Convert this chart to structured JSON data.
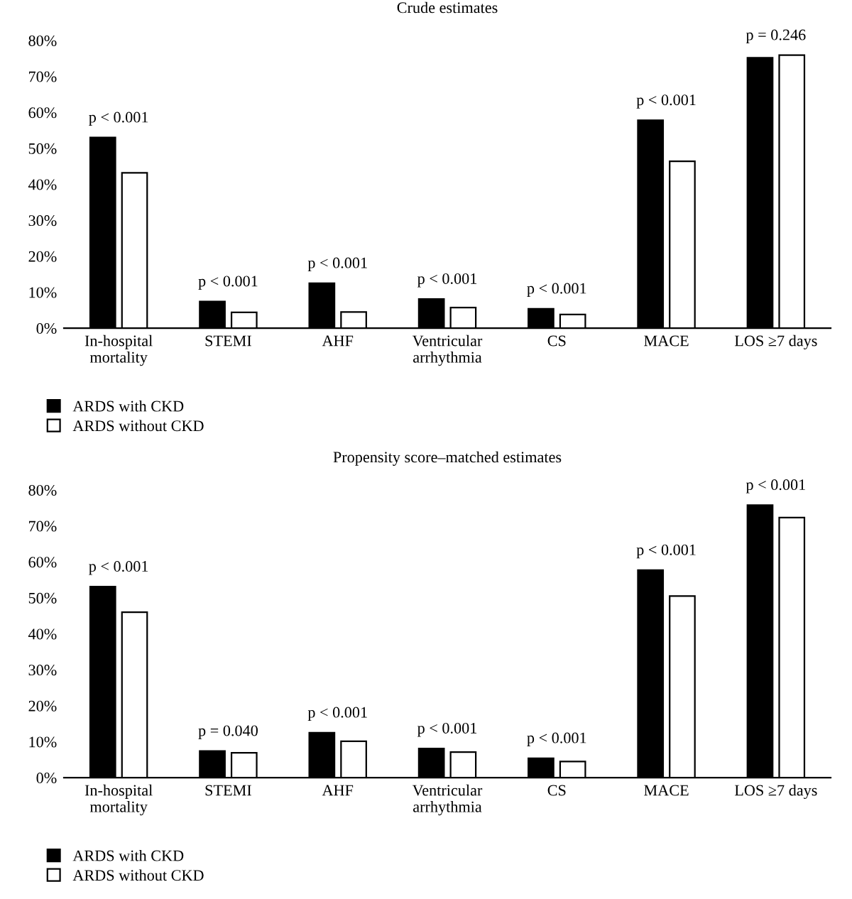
{
  "chart_data": [
    {
      "type": "bar",
      "title": "Crude estimates",
      "categories": [
        "In-hospital\nmortality",
        "STEMI",
        "AHF",
        "Ventricular\narrhythmia",
        "CS",
        "MACE",
        "LOS ≥7 days"
      ],
      "series": [
        {
          "name": "ARDS with CKD",
          "color": "#000000",
          "values": [
            53.0,
            7.4,
            12.5,
            8.1,
            5.4,
            57.8,
            75.2
          ]
        },
        {
          "name": "ARDS without CKD",
          "color": "#ffffff",
          "values": [
            43.2,
            4.4,
            4.5,
            5.7,
            3.8,
            46.4,
            75.9
          ]
        }
      ],
      "ylim": [
        0,
        80
      ],
      "yticks": [
        {
          "value": 0,
          "label": "0%"
        },
        {
          "value": 10,
          "label": "10%"
        },
        {
          "value": 20,
          "label": "20%"
        },
        {
          "value": 30,
          "label": "30%"
        },
        {
          "value": 40,
          "label": "40%"
        },
        {
          "value": 50,
          "label": "50%"
        },
        {
          "value": 60,
          "label": "60%"
        },
        {
          "value": 70,
          "label": "70%"
        },
        {
          "value": 80,
          "label": "80%"
        }
      ],
      "annotations": [
        {
          "text": "p < 0.001",
          "x": "In-hospital\nmortality",
          "y": 53.0
        },
        {
          "text": "p < 0.001",
          "x": "STEMI",
          "y": 7.4
        },
        {
          "text": "p < 0.001",
          "x": "AHF",
          "y": 12.5
        },
        {
          "text": "p < 0.001",
          "x": "Ventricular\narrhythmia",
          "y": 8.1
        },
        {
          "text": "p < 0.001",
          "x": "CS",
          "y": 5.4
        },
        {
          "text": "p < 0.001",
          "x": "MACE",
          "y": 57.8
        },
        {
          "text": "p = 0.246",
          "x": "LOS ≥7 days",
          "y": 75.9
        }
      ],
      "legend": "bottom left",
      "grid": false
    },
    {
      "type": "bar",
      "title": "Propensity score–matched estimates",
      "categories": [
        "In-hospital\nmortality",
        "STEMI",
        "AHF",
        "Ventricular\narrhythmia",
        "CS",
        "MACE",
        "LOS ≥7 days"
      ],
      "series": [
        {
          "name": "ARDS with CKD",
          "color": "#000000",
          "values": [
            53.1,
            7.4,
            12.5,
            8.1,
            5.4,
            57.7,
            75.8
          ]
        },
        {
          "name": "ARDS without CKD",
          "color": "#ffffff",
          "values": [
            46.0,
            6.9,
            10.1,
            7.1,
            4.5,
            50.5,
            72.3
          ]
        }
      ],
      "ylim": [
        0,
        80
      ],
      "yticks": [
        {
          "value": 0,
          "label": "0%"
        },
        {
          "value": 10,
          "label": "10%"
        },
        {
          "value": 20,
          "label": "20%"
        },
        {
          "value": 30,
          "label": "30%"
        },
        {
          "value": 40,
          "label": "40%"
        },
        {
          "value": 50,
          "label": "50%"
        },
        {
          "value": 60,
          "label": "60%"
        },
        {
          "value": 70,
          "label": "70%"
        },
        {
          "value": 80,
          "label": "80%"
        }
      ],
      "annotations": [
        {
          "text": "p < 0.001",
          "x": "In-hospital\nmortality",
          "y": 53.1
        },
        {
          "text": "p = 0.040",
          "x": "STEMI",
          "y": 7.4
        },
        {
          "text": "p < 0.001",
          "x": "AHF",
          "y": 12.5
        },
        {
          "text": "p < 0.001",
          "x": "Ventricular\narrhythmia",
          "y": 8.1
        },
        {
          "text": "p < 0.001",
          "x": "CS",
          "y": 5.4
        },
        {
          "text": "p < 0.001",
          "x": "MACE",
          "y": 57.7
        },
        {
          "text": "p < 0.001",
          "x": "LOS ≥7 days",
          "y": 75.8
        }
      ],
      "legend": "bottom left",
      "grid": false
    }
  ]
}
